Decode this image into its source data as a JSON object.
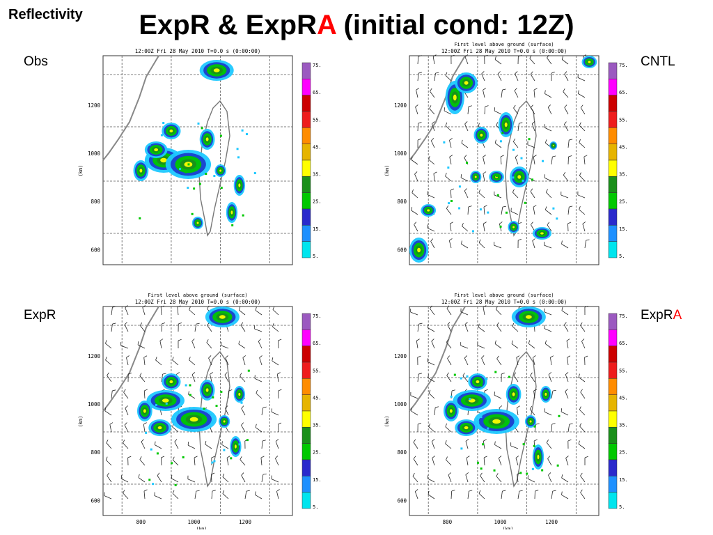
{
  "slide": {
    "tag": "Reflectivity",
    "title_part1": "ExpR & ExpR",
    "title_red": "A",
    "title_part2": " (initial cond: 12Z)"
  },
  "colors": {
    "accent_red": "#ff0000"
  },
  "colorbar": {
    "labels": [
      "75.",
      "65.",
      "55.",
      "45.",
      "35.",
      "25.",
      "15.",
      "5."
    ],
    "colors": [
      "#9b59c0",
      "#ff00ff",
      "#cc0000",
      "#ee1c1c",
      "#ff8c00",
      "#e6b400",
      "#ffff00",
      "#1a8f1a",
      "#00c800",
      "#2a2acc",
      "#1e90ff",
      "#00e5ee"
    ]
  },
  "panels": [
    {
      "id": "obs",
      "label": "Obs",
      "label_red": "",
      "header1": "",
      "header2": "12:00Z Fri 28 May 2010    T=0.0 s (0:00:00)",
      "ylabel": "(km)",
      "yticks": [
        "1200",
        "1000",
        "800",
        "600"
      ],
      "xticks": [],
      "xlabel": "",
      "wind": false
    },
    {
      "id": "cntl",
      "label": "CNTL",
      "label_red": "",
      "header1": "First level above ground (surface)",
      "header2": "12:00Z Fri 28 May 2010    T=0.0 s (0:00:00)",
      "ylabel": "(km)",
      "yticks": [
        "1200",
        "1000",
        "800",
        "600"
      ],
      "xticks": [],
      "xlabel": "",
      "wind": true
    },
    {
      "id": "expr",
      "label": "ExpR",
      "label_red": "",
      "header1": "First level above ground (surface)",
      "header2": "12:00Z Fri 28 May 2010    T=0.0 s (0:00:00)",
      "ylabel": "(km)",
      "yticks": [
        "1200",
        "1000",
        "800",
        "600"
      ],
      "xticks": [
        "800",
        "1000",
        "1200"
      ],
      "xlabel": "(km)",
      "wind": true
    },
    {
      "id": "expra",
      "label": "ExpR",
      "label_red": "A",
      "header1": "First level above ground (surface)",
      "header2": "12:00Z Fri 28 May 2010    T=0.0 s (0:00:00)",
      "ylabel": "(km)",
      "yticks": [
        "1200",
        "1000",
        "800",
        "600"
      ],
      "xticks": [
        "800",
        "1000",
        "1200"
      ],
      "xlabel": "(km)",
      "wind": true
    }
  ]
}
